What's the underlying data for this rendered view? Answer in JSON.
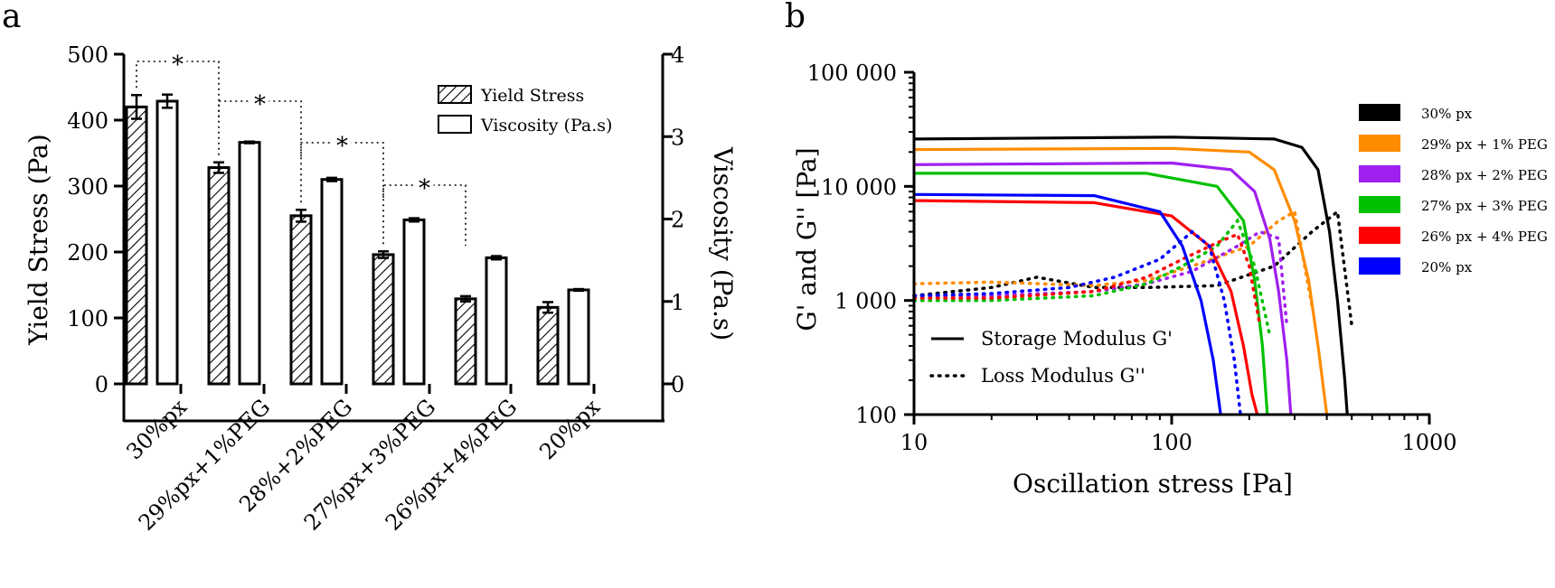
{
  "panel_a_label": "a",
  "panel_b_label": "b",
  "chart_data": [
    {
      "type": "bar",
      "categories": [
        "30%px",
        "29%px+1%PEG",
        "28%+2%PEG",
        "27%px+3%PEG",
        "26%px+4%PEG",
        "20%px"
      ],
      "series": [
        {
          "name": "Yield Stress",
          "axis": "left",
          "values": [
            420,
            328,
            255,
            196,
            129,
            116
          ],
          "errors": [
            18,
            8,
            9,
            5,
            4,
            8
          ],
          "pattern": "hatched"
        },
        {
          "name": "Viscosity (Pa.s)",
          "axis": "right",
          "values": [
            3.43,
            2.93,
            2.48,
            1.99,
            1.53,
            1.14
          ],
          "errors": [
            0.08,
            0.01,
            0.02,
            0.02,
            0.02,
            0.01
          ],
          "pattern": "open"
        }
      ],
      "ylabel": "Yield Stress (Pa)",
      "ylim": [
        0,
        500
      ],
      "yticks": [
        "0",
        "100",
        "200",
        "300",
        "400",
        "500"
      ],
      "y2label": "Viscosity (Pa.s)",
      "y2lim": [
        0,
        4
      ],
      "y2ticks": [
        "0",
        "1",
        "2",
        "3",
        "4"
      ],
      "significance_mark": "*",
      "significance_pairs": [
        [
          0,
          1
        ],
        [
          1,
          2
        ],
        [
          2,
          3
        ],
        [
          3,
          4
        ]
      ],
      "legend_position": "top-right"
    },
    {
      "type": "line",
      "xscale": "log",
      "yscale": "log",
      "xlim": [
        10,
        1000
      ],
      "ylim": [
        100,
        100000
      ],
      "xlabel": "Oscillation stress [Pa]",
      "ylabel": "G' and G'' [Pa]",
      "xticks": [
        "10",
        "100",
        "1000"
      ],
      "yticks": [
        "100",
        "1 000",
        "10 000",
        "100 000"
      ],
      "legend_position": "right",
      "style_legend": [
        {
          "name": "Storage Modulus G'",
          "style": "solid"
        },
        {
          "name": "Loss Modulus G''",
          "style": "dotted"
        }
      ],
      "series": [
        {
          "name": "30% px",
          "color": "#000000",
          "storage": {
            "x": [
              10,
              100,
              250,
              320,
              370,
              410,
              440,
              470,
              480
            ],
            "y": [
              26000,
              27000,
              26000,
              22000,
              14000,
              4000,
              1000,
              200,
              100
            ]
          },
          "loss": {
            "x": [
              10,
              20,
              30,
              50,
              80,
              150,
              250,
              350,
              440,
              500
            ],
            "y": [
              1100,
              1300,
              1600,
              1300,
              1300,
              1350,
              2000,
              4000,
              6000,
              600
            ]
          }
        },
        {
          "name": "29% px + 1% PEG",
          "color": "#ff8c00",
          "storage": {
            "x": [
              10,
              100,
              200,
              250,
              300,
              340,
              370,
              400
            ],
            "y": [
              21000,
              21500,
              20000,
              14000,
              5000,
              1500,
              400,
              100
            ]
          },
          "loss": {
            "x": [
              10,
              20,
              50,
              80,
              120,
              200,
              260,
              300,
              350
            ],
            "y": [
              1400,
              1450,
              1350,
              1500,
              2000,
              3000,
              5000,
              6000,
              900
            ]
          }
        },
        {
          "name": "28% px + 2% PEG",
          "color": "#a020f0",
          "storage": {
            "x": [
              10,
              100,
              170,
              210,
              240,
              260,
              280,
              290
            ],
            "y": [
              15500,
              16000,
              14000,
              9000,
              3500,
              1200,
              300,
              100
            ]
          },
          "loss": {
            "x": [
              10,
              20,
              50,
              80,
              120,
              180,
              220,
              260,
              280
            ],
            "y": [
              1100,
              1100,
              1200,
              1400,
              1800,
              3000,
              4000,
              3500,
              600
            ]
          }
        },
        {
          "name": "27% px + 3% PEG",
          "color": "#00c000",
          "storage": {
            "x": [
              10,
              80,
              150,
              190,
              210,
              225,
              235
            ],
            "y": [
              13000,
              13000,
              10000,
              5000,
              1500,
              400,
              100
            ]
          },
          "loss": {
            "x": [
              10,
              20,
              50,
              80,
              110,
              150,
              180,
              210,
              240
            ],
            "y": [
              1000,
              1000,
              1100,
              1400,
              2000,
              3000,
              5000,
              2000,
              500
            ]
          }
        },
        {
          "name": "26% px + 4% PEG",
          "color": "#ff0000",
          "storage": {
            "x": [
              10,
              50,
              100,
              140,
              170,
              190,
              205,
              215
            ],
            "y": [
              7500,
              7200,
              5500,
              3000,
              1200,
              400,
              150,
              100
            ]
          },
          "loss": {
            "x": [
              10,
              20,
              50,
              80,
              110,
              150,
              180,
              200,
              220
            ],
            "y": [
              1050,
              1050,
              1200,
              1600,
              2300,
              3200,
              3800,
              2000,
              600
            ]
          }
        },
        {
          "name": "20% px",
          "color": "#0000ff",
          "storage": {
            "x": [
              10,
              50,
              90,
              110,
              130,
              145,
              155
            ],
            "y": [
              8500,
              8300,
              6000,
              3000,
              1000,
              300,
              100
            ]
          },
          "loss": {
            "x": [
              10,
              20,
              40,
              60,
              90,
              120,
              140,
              160,
              175,
              185
            ],
            "y": [
              1100,
              1150,
              1300,
              1600,
              2300,
              4000,
              3000,
              1000,
              300,
              100
            ]
          }
        }
      ]
    }
  ]
}
